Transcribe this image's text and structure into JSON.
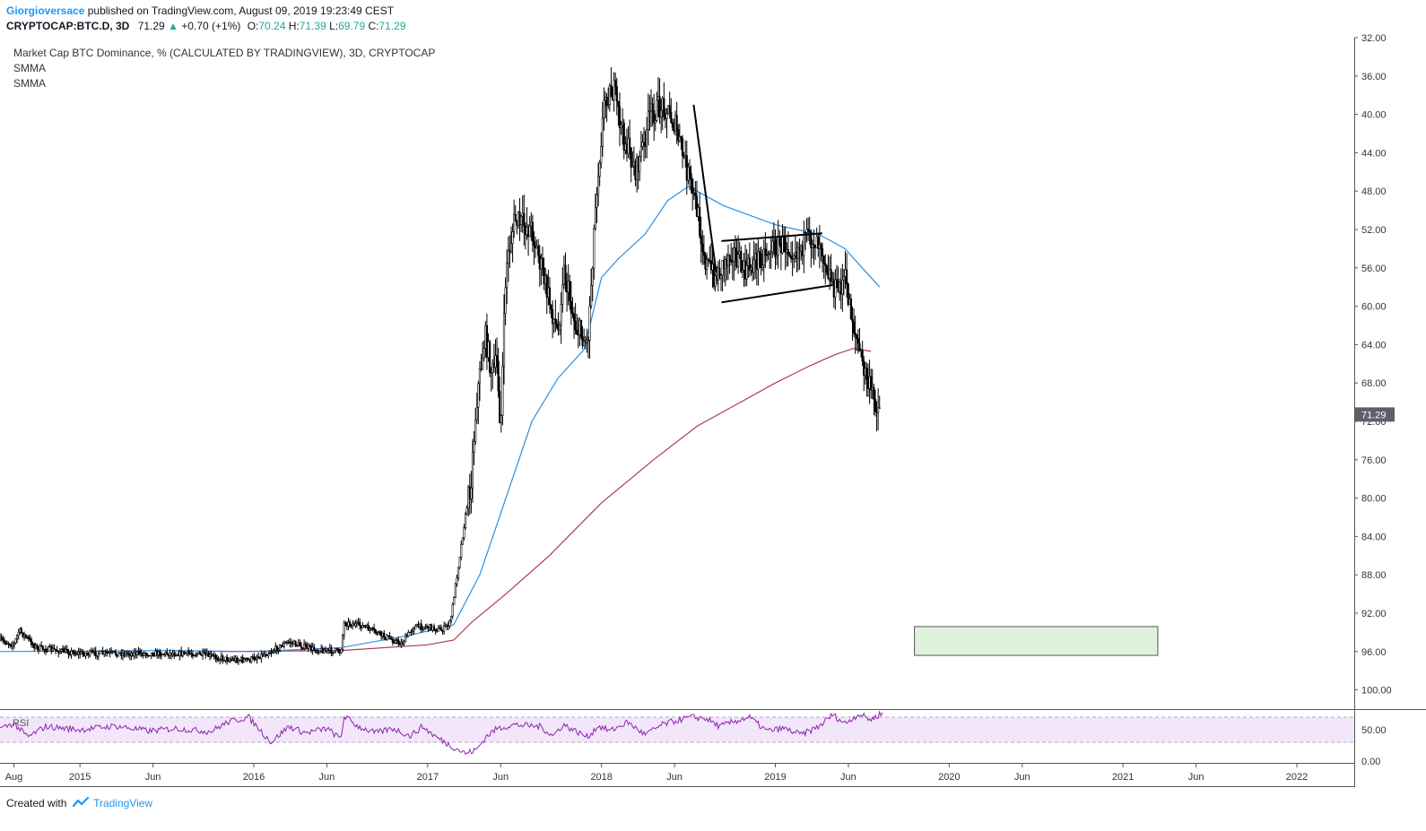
{
  "header": {
    "author": "Giorgioversace",
    "published": "published on TradingView.com, August 09, 2019 19:23:49 CEST",
    "symbol": "CRYPTOCAP:BTC.D, 3D",
    "last": "71.29",
    "change_arrow": "▲",
    "change": "+0.70 (+1%)",
    "o_label": "O:",
    "o": "70.24",
    "h_label": "H:",
    "h": "71.39",
    "l_label": "L:",
    "l": "69.79",
    "c_label": "C:",
    "c": "71.29"
  },
  "pane": {
    "title": "Market Cap BTC Dominance, % (CALCULATED BY TRADINGVIEW), 3D, CRYPTOCAP",
    "indicator1": "SMMA",
    "indicator2": "SMMA",
    "rsi_label": "RSI"
  },
  "footer": {
    "created_with": "Created with",
    "brand": "TradingView",
    "logo_icon": "tradingview-logo-icon"
  },
  "colors": {
    "candles": "#000000",
    "smma_fast": "#2d8fe0",
    "smma_slow": "#b0385a",
    "rsi_line": "#8e24aa",
    "rsi_band": "#f2e6fb",
    "target_box": "#dff2dc",
    "last_price_tag": "#5d606b"
  },
  "chart_data": {
    "type": "candlestick",
    "title": "Market Cap BTC Dominance, % (CALCULATED BY TRADINGVIEW), 3D, CRYPTOCAP",
    "price_axis": {
      "inverted": true,
      "range": [
        32,
        102
      ],
      "ticks": [
        "32.00",
        "36.00",
        "40.00",
        "44.00",
        "48.00",
        "52.00",
        "56.00",
        "60.00",
        "64.00",
        "68.00",
        "72.00",
        "76.00",
        "80.00",
        "84.00",
        "88.00",
        "92.00",
        "96.00",
        "100.00"
      ],
      "last_value_tag": "71.29"
    },
    "time_axis": {
      "range": [
        2014.54,
        2022.33
      ],
      "ticks": [
        {
          "t": 2014.62,
          "label": "Aug"
        },
        {
          "t": 2015.0,
          "label": "2015"
        },
        {
          "t": 2015.42,
          "label": "Jun"
        },
        {
          "t": 2016.0,
          "label": "2016"
        },
        {
          "t": 2016.42,
          "label": "Jun"
        },
        {
          "t": 2017.0,
          "label": "2017"
        },
        {
          "t": 2017.42,
          "label": "Jun"
        },
        {
          "t": 2018.0,
          "label": "2018"
        },
        {
          "t": 2018.42,
          "label": "Jun"
        },
        {
          "t": 2019.0,
          "label": "2019"
        },
        {
          "t": 2019.42,
          "label": "Jun"
        },
        {
          "t": 2020.0,
          "label": "2020"
        },
        {
          "t": 2020.42,
          "label": "Jun"
        },
        {
          "t": 2021.0,
          "label": "2021"
        },
        {
          "t": 2021.42,
          "label": "Jun"
        },
        {
          "t": 2022.0,
          "label": "2022"
        }
      ]
    },
    "price_path": [
      [
        2014.54,
        94.8
      ],
      [
        2014.62,
        95.3
      ],
      [
        2014.65,
        93.8
      ],
      [
        2014.75,
        95.6
      ],
      [
        2015.0,
        96.2
      ],
      [
        2015.4,
        96.2
      ],
      [
        2015.65,
        96.2
      ],
      [
        2015.85,
        96.8
      ],
      [
        2015.97,
        96.9
      ],
      [
        2016.1,
        96.0
      ],
      [
        2016.2,
        95.0
      ],
      [
        2016.35,
        95.8
      ],
      [
        2016.5,
        96.0
      ],
      [
        2016.52,
        93.0
      ],
      [
        2016.62,
        93.3
      ],
      [
        2016.75,
        94.4
      ],
      [
        2016.85,
        95.2
      ],
      [
        2016.92,
        93.4
      ],
      [
        2017.0,
        93.4
      ],
      [
        2017.08,
        93.8
      ],
      [
        2017.13,
        93.0
      ],
      [
        2017.2,
        84.0
      ],
      [
        2017.25,
        78.0
      ],
      [
        2017.28,
        70.0
      ],
      [
        2017.33,
        63.0
      ],
      [
        2017.37,
        67.0
      ],
      [
        2017.4,
        66.0
      ],
      [
        2017.42,
        73.0
      ],
      [
        2017.45,
        56.0
      ],
      [
        2017.5,
        51.0
      ],
      [
        2017.6,
        52.0
      ],
      [
        2017.68,
        58.0
      ],
      [
        2017.75,
        63.0
      ],
      [
        2017.78,
        56.0
      ],
      [
        2017.85,
        62.0
      ],
      [
        2017.92,
        64.0
      ],
      [
        2017.97,
        48.0
      ],
      [
        2018.02,
        38.0
      ],
      [
        2018.07,
        37.5
      ],
      [
        2018.12,
        42.0
      ],
      [
        2018.2,
        46.0
      ],
      [
        2018.28,
        40.0
      ],
      [
        2018.36,
        39.0
      ],
      [
        2018.42,
        41.0
      ],
      [
        2018.48,
        45.0
      ],
      [
        2018.55,
        50.0
      ],
      [
        2018.6,
        55.5
      ],
      [
        2018.66,
        57.0
      ],
      [
        2018.75,
        54.0
      ],
      [
        2018.82,
        56.5
      ],
      [
        2018.9,
        55.0
      ],
      [
        2018.97,
        54.0
      ],
      [
        2019.05,
        53.5
      ],
      [
        2019.12,
        54.0
      ],
      [
        2019.2,
        53.0
      ],
      [
        2019.26,
        53.0
      ],
      [
        2019.3,
        56.0
      ],
      [
        2019.35,
        58.5
      ],
      [
        2019.4,
        57.0
      ],
      [
        2019.45,
        62.0
      ],
      [
        2019.5,
        66.0
      ],
      [
        2019.55,
        69.0
      ],
      [
        2019.6,
        70.8
      ]
    ],
    "smma_fast": [
      [
        2014.54,
        96.0
      ],
      [
        2015.5,
        95.9
      ],
      [
        2016.0,
        96.0
      ],
      [
        2016.5,
        95.6
      ],
      [
        2016.9,
        94.3
      ],
      [
        2017.15,
        93.2
      ],
      [
        2017.3,
        88.0
      ],
      [
        2017.45,
        80.0
      ],
      [
        2017.6,
        72.0
      ],
      [
        2017.75,
        67.5
      ],
      [
        2017.9,
        64.5
      ],
      [
        2018.0,
        57.0
      ],
      [
        2018.1,
        55.0
      ],
      [
        2018.25,
        52.5
      ],
      [
        2018.38,
        49.0
      ],
      [
        2018.5,
        47.5
      ],
      [
        2018.7,
        49.5
      ],
      [
        2019.0,
        51.5
      ],
      [
        2019.25,
        52.5
      ],
      [
        2019.4,
        54.0
      ],
      [
        2019.5,
        56.0
      ],
      [
        2019.6,
        58.0
      ]
    ],
    "smma_slow": [
      [
        2015.8,
        96.0
      ],
      [
        2016.5,
        95.9
      ],
      [
        2017.0,
        95.3
      ],
      [
        2017.15,
        94.8
      ],
      [
        2017.25,
        93.0
      ],
      [
        2017.45,
        90.0
      ],
      [
        2017.7,
        86.0
      ],
      [
        2018.0,
        80.5
      ],
      [
        2018.3,
        76.0
      ],
      [
        2018.55,
        72.5
      ],
      [
        2018.8,
        70.0
      ],
      [
        2019.0,
        68.0
      ],
      [
        2019.2,
        66.2
      ],
      [
        2019.35,
        65.0
      ],
      [
        2019.45,
        64.4
      ],
      [
        2019.55,
        64.7
      ]
    ],
    "trend_lines": [
      {
        "name": "breakdown",
        "from": [
          2018.53,
          39.0
        ],
        "to": [
          2018.66,
          56.5
        ]
      },
      {
        "name": "flag-top",
        "from": [
          2018.69,
          53.2
        ],
        "to": [
          2019.27,
          52.4
        ]
      },
      {
        "name": "flag-bottom",
        "from": [
          2018.69,
          59.6
        ],
        "to": [
          2019.33,
          57.8
        ]
      }
    ],
    "target_zone": {
      "t0": 2019.8,
      "t1": 2021.2,
      "p0": 93.4,
      "p1": 96.4
    },
    "rsi": {
      "label": "RSI",
      "levels": [
        70,
        30
      ],
      "axis_ticks": [
        "50.00",
        "0.00"
      ],
      "path": [
        [
          2014.54,
          52
        ],
        [
          2014.62,
          60
        ],
        [
          2014.7,
          38
        ],
        [
          2014.8,
          55
        ],
        [
          2015.0,
          50
        ],
        [
          2015.2,
          56
        ],
        [
          2015.4,
          48
        ],
        [
          2015.55,
          52
        ],
        [
          2015.75,
          47
        ],
        [
          2015.85,
          62
        ],
        [
          2015.97,
          70
        ],
        [
          2016.05,
          45
        ],
        [
          2016.1,
          30
        ],
        [
          2016.2,
          55
        ],
        [
          2016.3,
          45
        ],
        [
          2016.42,
          52
        ],
        [
          2016.5,
          35
        ],
        [
          2016.52,
          72
        ],
        [
          2016.6,
          55
        ],
        [
          2016.7,
          45
        ],
        [
          2016.8,
          52
        ],
        [
          2016.9,
          40
        ],
        [
          2016.97,
          55
        ],
        [
          2017.05,
          38
        ],
        [
          2017.15,
          22
        ],
        [
          2017.22,
          12
        ],
        [
          2017.28,
          18
        ],
        [
          2017.34,
          40
        ],
        [
          2017.4,
          52
        ],
        [
          2017.5,
          58
        ],
        [
          2017.65,
          55
        ],
        [
          2017.72,
          40
        ],
        [
          2017.78,
          58
        ],
        [
          2017.85,
          48
        ],
        [
          2017.92,
          38
        ],
        [
          2017.98,
          56
        ],
        [
          2018.05,
          48
        ],
        [
          2018.15,
          62
        ],
        [
          2018.25,
          42
        ],
        [
          2018.35,
          58
        ],
        [
          2018.45,
          66
        ],
        [
          2018.52,
          70
        ],
        [
          2018.6,
          68
        ],
        [
          2018.68,
          55
        ],
        [
          2018.75,
          62
        ],
        [
          2018.85,
          70
        ],
        [
          2018.95,
          48
        ],
        [
          2019.05,
          52
        ],
        [
          2019.15,
          42
        ],
        [
          2019.25,
          55
        ],
        [
          2019.33,
          74
        ],
        [
          2019.4,
          60
        ],
        [
          2019.48,
          75
        ],
        [
          2019.55,
          66
        ],
        [
          2019.62,
          78
        ]
      ]
    }
  }
}
